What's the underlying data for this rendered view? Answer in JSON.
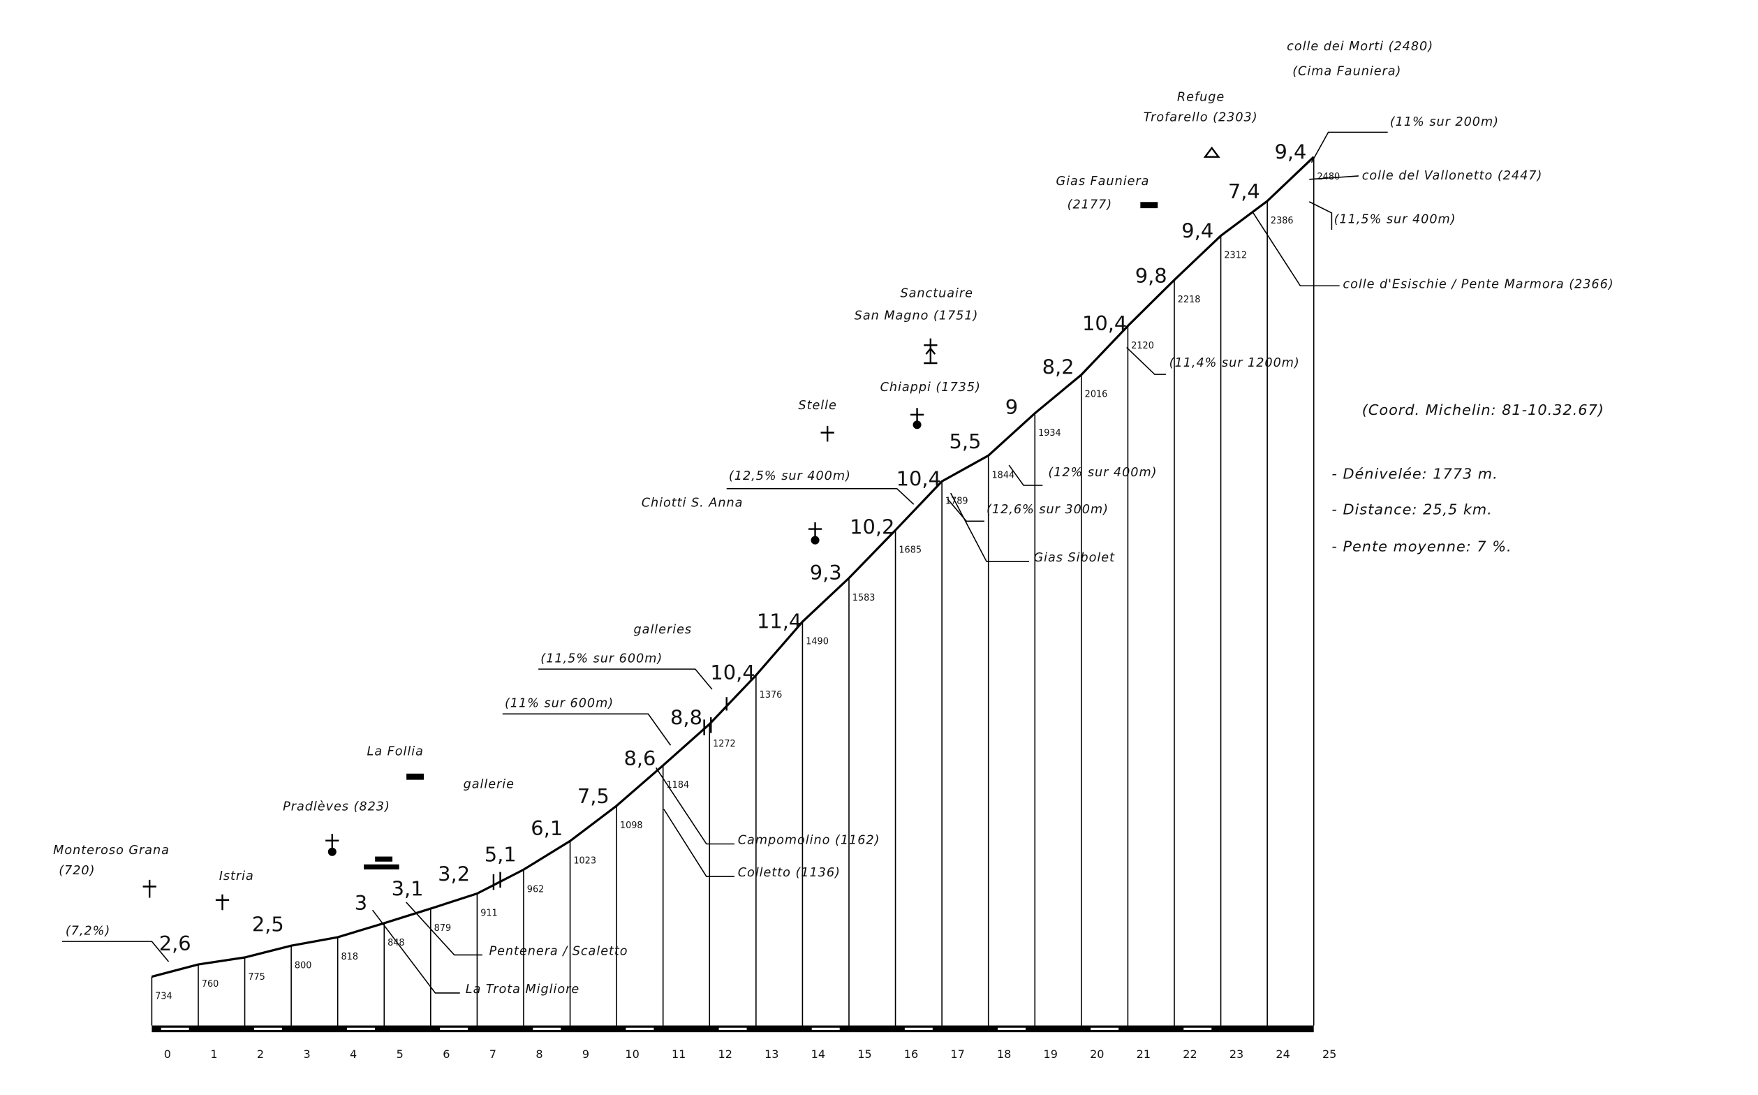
{
  "chart_data": {
    "type": "profile",
    "x": [
      0,
      1,
      2,
      3,
      4,
      5,
      6,
      7,
      8,
      9,
      10,
      11,
      12,
      13,
      14,
      15,
      16,
      17,
      18,
      19,
      20,
      21,
      22,
      23,
      24,
      25
    ],
    "altitudes": [
      734,
      760,
      775,
      800,
      818,
      848,
      879,
      911,
      962,
      1023,
      1098,
      1184,
      1272,
      1376,
      1490,
      1583,
      1685,
      1789,
      1844,
      1934,
      2016,
      2120,
      2218,
      2312,
      2386,
      2480
    ],
    "slopes": [
      2.6,
      null,
      2.5,
      null,
      3,
      3.1,
      3.2,
      5.1,
      6.1,
      7.5,
      8.6,
      8.8,
      10.4,
      11.4,
      9.3,
      10.2,
      10.4,
      5.5,
      9,
      8.2,
      10.4,
      9.8,
      9.4,
      7.4,
      9.4
    ],
    "slope_labels": [
      "2,6",
      null,
      "2,5",
      null,
      "3",
      "3,1",
      "3,2",
      "5,1",
      "6,1",
      "7,5",
      "8,6",
      "8,8",
      "10,4",
      "11,4",
      "9,3",
      "10,2",
      "10,4",
      "5,5",
      "9",
      "8,2",
      "10,4",
      "9,8",
      "9,4",
      "7,4",
      "9,4"
    ],
    "xlim": [
      0,
      25
    ],
    "ylim": [
      630,
      2480
    ],
    "xticks": [
      0,
      1,
      2,
      3,
      4,
      5,
      6,
      7,
      8,
      9,
      10,
      11,
      12,
      13,
      14,
      15,
      16,
      17,
      18,
      19,
      20,
      21,
      22,
      23,
      24,
      25
    ],
    "color": "#000000",
    "annotations": [
      "colle dei Morti (2480)",
      "(Cima Fauniera)",
      "Refuge",
      "Trofarello (2303)",
      "(11% sur 200m)",
      "colle del Vallonetto (2447)",
      "(11,5% sur 400m)",
      "colle d'Esischie / Pente Marmora (2366)",
      "Gias Fauniera",
      "(2177)",
      "Sanctuaire",
      "San Magno (1751)",
      "Chiappi (1735)",
      "Stelle",
      "(11,4% sur 1200m)",
      "(Coord. Michelin: 81-10.32.67)",
      "- Dénivelée: 1773 m.",
      "- Distance: 25,5 km.",
      "- Pente moyenne: 7 %.",
      "(12,5% sur 400m)",
      "Chiotti S. Anna",
      "(12% sur 400m)",
      "(12,6% sur 300m)",
      "Gias Sibolet",
      "galleries",
      "(11,5% sur 600m)",
      "(11% sur 600m)",
      "Campomolino (1162)",
      "Colletto (1136)",
      "La Follia",
      "gallerie",
      "Pradlèves (823)",
      "Monteroso Grana",
      "(720)",
      "Istria",
      "(7,2%)",
      "Pentenera / Scaletto",
      "La Trota Migliore"
    ]
  }
}
